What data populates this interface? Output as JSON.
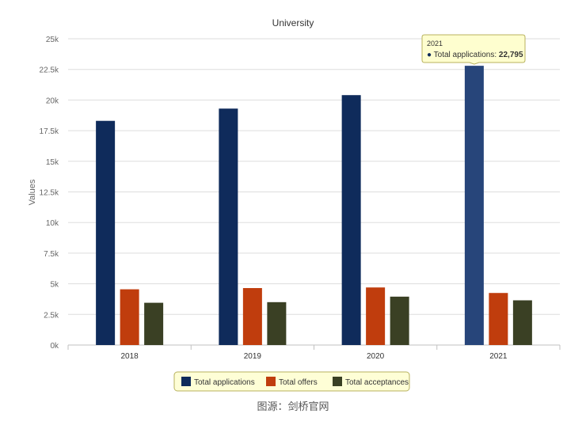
{
  "chart_data": {
    "type": "bar",
    "title": "University",
    "ylabel": "Values",
    "xlabel": "",
    "categories": [
      "2018",
      "2019",
      "2020",
      "2021"
    ],
    "series": [
      {
        "name": "Total applications",
        "color": "#0f2b5b",
        "values": [
          18300,
          19300,
          20400,
          22795
        ]
      },
      {
        "name": "Total offers",
        "color": "#c03d0d",
        "values": [
          4550,
          4650,
          4700,
          4250
        ]
      },
      {
        "name": "Total acceptances",
        "color": "#3a4024",
        "values": [
          3450,
          3500,
          3950,
          3650
        ]
      }
    ],
    "ylim": [
      0,
      25000
    ],
    "yticks": [
      "0k",
      "2.5k",
      "5k",
      "7.5k",
      "10k",
      "12.5k",
      "15k",
      "17.5k",
      "20k",
      "22.5k",
      "25k"
    ],
    "grid": true,
    "legend_position": "bottom",
    "tooltip": {
      "category": "2021",
      "series_label": "Total applications:",
      "value_text": "22,795",
      "highlight_color": "#27457a",
      "background": "#fefecf",
      "border": "#b8b25e"
    }
  },
  "caption": "图源：剑桥官网"
}
